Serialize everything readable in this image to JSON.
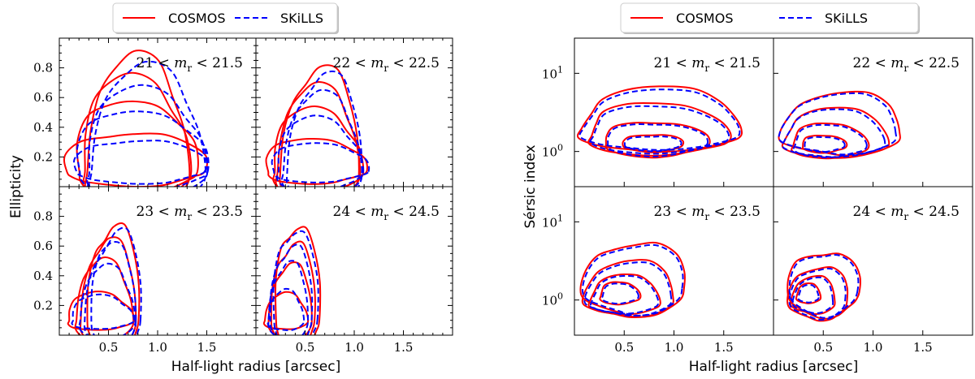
{
  "colors": {
    "cosmos": "#ff0000",
    "skills": "#0000ff"
  },
  "chart_data": [
    {
      "type": "contour",
      "legend": {
        "placement": "top-center",
        "entries": [
          "COSMOS",
          "SKiLLS"
        ]
      },
      "xlabel": "Half-light radius [arcsec]",
      "ylabel": "Ellipticity",
      "xlim": [
        0,
        2.0
      ],
      "ylim": [
        0,
        1.0
      ],
      "xticks": [
        "0.5",
        "1.0",
        "1.5"
      ],
      "yticks": [
        "0.2",
        "0.4",
        "0.6",
        "0.8"
      ],
      "panels": [
        {
          "label_prefix": "21 <",
          "label_var": "m",
          "label_sub": "r",
          "label_suffix": "< 21.5",
          "contours": [
            {
              "series": "COSMOS",
              "levels": [
                [
                  0.75,
                  0.1,
                  0.7,
                  0.27
                ],
                [
                  0.75,
                  0.1,
                  0.6,
                  0.49
                ],
                [
                  0.75,
                  0.1,
                  0.54,
                  0.65
                ],
                [
                  0.78,
                  0.1,
                  0.52,
                  0.77
                ]
              ]
            },
            {
              "series": "SKiLLS",
              "levels": [
                [
                  0.8,
                  0.1,
                  0.65,
                  0.22
                ],
                [
                  0.8,
                  0.1,
                  0.65,
                  0.42
                ],
                [
                  0.85,
                  0.1,
                  0.6,
                  0.57
                ],
                [
                  0.88,
                  0.1,
                  0.58,
                  0.7
                ]
              ]
            }
          ]
        },
        {
          "label_prefix": "22 <",
          "label_var": "m",
          "label_sub": "r",
          "label_suffix": "< 22.5",
          "contours": [
            {
              "series": "COSMOS",
              "levels": [
                [
                  0.58,
                  0.1,
                  0.5,
                  0.23
                ],
                [
                  0.6,
                  0.1,
                  0.45,
                  0.43
                ],
                [
                  0.62,
                  0.1,
                  0.42,
                  0.57
                ],
                [
                  0.65,
                  0.1,
                  0.4,
                  0.68
                ]
              ]
            },
            {
              "series": "SKiLLS",
              "levels": [
                [
                  0.62,
                  0.1,
                  0.48,
                  0.2
                ],
                [
                  0.62,
                  0.1,
                  0.43,
                  0.37
                ],
                [
                  0.66,
                  0.1,
                  0.4,
                  0.52
                ],
                [
                  0.7,
                  0.1,
                  0.38,
                  0.64
                ]
              ]
            }
          ]
        },
        {
          "label_prefix": "23 <",
          "label_var": "m",
          "label_sub": "r",
          "label_suffix": "< 23.5",
          "contours": [
            {
              "series": "COSMOS",
              "levels": [
                [
                  0.4,
                  0.1,
                  0.33,
                  0.19
                ],
                [
                  0.45,
                  0.1,
                  0.29,
                  0.4
                ],
                [
                  0.5,
                  0.1,
                  0.28,
                  0.53
                ],
                [
                  0.55,
                  0.1,
                  0.26,
                  0.64
                ]
              ]
            },
            {
              "series": "SKiLLS",
              "levels": [
                [
                  0.42,
                  0.1,
                  0.31,
                  0.17
                ],
                [
                  0.48,
                  0.1,
                  0.28,
                  0.36
                ],
                [
                  0.52,
                  0.1,
                  0.26,
                  0.5
                ],
                [
                  0.58,
                  0.1,
                  0.25,
                  0.61
                ]
              ]
            }
          ]
        },
        {
          "label_prefix": "24 <",
          "label_var": "m",
          "label_sub": "r",
          "label_suffix": "< 24.5",
          "contours": [
            {
              "series": "COSMOS",
              "levels": [
                [
                  0.3,
                  0.1,
                  0.22,
                  0.18
                ],
                [
                  0.35,
                  0.1,
                  0.22,
                  0.37
                ],
                [
                  0.38,
                  0.1,
                  0.22,
                  0.52
                ],
                [
                  0.42,
                  0.1,
                  0.22,
                  0.65
                ]
              ]
            },
            {
              "series": "SKiLLS",
              "levels": [
                [
                  0.3,
                  0.1,
                  0.18,
                  0.2
                ],
                [
                  0.33,
                  0.1,
                  0.2,
                  0.38
                ],
                [
                  0.36,
                  0.1,
                  0.21,
                  0.5
                ],
                [
                  0.4,
                  0.1,
                  0.22,
                  0.62
                ]
              ]
            }
          ]
        }
      ]
    },
    {
      "type": "contour",
      "legend": {
        "placement": "top-center",
        "entries": [
          "COSMOS",
          "SKiLLS"
        ]
      },
      "xlabel": "Half-light radius [arcsec]",
      "ylabel": "Sérsic index",
      "xlim": [
        0,
        2.0
      ],
      "ylim_log10": [
        -0.45,
        1.45
      ],
      "xticks": [
        "0.5",
        "1.0",
        "1.5"
      ],
      "yticks": [
        {
          "base": "10",
          "exp": "0"
        },
        {
          "base": "10",
          "exp": "1"
        }
      ],
      "panels": [
        {
          "label_prefix": "21 <",
          "label_var": "m",
          "label_sub": "r",
          "label_suffix": "< 21.5",
          "contours": [
            {
              "series": "COSMOS",
              "levels": [
                [
                  0.78,
                  0.08,
                  0.3,
                  0.14
                ],
                [
                  0.8,
                  0.1,
                  0.52,
                  0.28
                ],
                [
                  0.82,
                  0.2,
                  0.7,
                  0.42
                ],
                [
                  0.85,
                  0.3,
                  0.8,
                  0.52
                ]
              ]
            },
            {
              "series": "SKiLLS",
              "levels": [
                [
                  0.78,
                  0.08,
                  0.28,
                  0.12
                ],
                [
                  0.8,
                  0.1,
                  0.5,
                  0.26
                ],
                [
                  0.82,
                  0.2,
                  0.68,
                  0.38
                ],
                [
                  0.85,
                  0.3,
                  0.78,
                  0.48
                ]
              ]
            }
          ]
        },
        {
          "label_prefix": "22 <",
          "label_var": "m",
          "label_sub": "r",
          "label_suffix": "< 22.5",
          "contours": [
            {
              "series": "COSMOS",
              "levels": [
                [
                  0.5,
                  0.07,
                  0.22,
                  0.14
                ],
                [
                  0.55,
                  0.08,
                  0.38,
                  0.28
                ],
                [
                  0.62,
                  0.15,
                  0.52,
                  0.4
                ],
                [
                  0.68,
                  0.25,
                  0.6,
                  0.5
                ]
              ]
            },
            {
              "series": "SKiLLS",
              "levels": [
                [
                  0.5,
                  0.07,
                  0.2,
                  0.12
                ],
                [
                  0.55,
                  0.08,
                  0.36,
                  0.26
                ],
                [
                  0.6,
                  0.15,
                  0.5,
                  0.38
                ],
                [
                  0.66,
                  0.25,
                  0.58,
                  0.48
                ]
              ]
            }
          ]
        },
        {
          "label_prefix": "23 <",
          "label_var": "m",
          "label_sub": "r",
          "label_suffix": "< 23.5",
          "contours": [
            {
              "series": "COSMOS",
              "levels": [
                [
                  0.45,
                  0.05,
                  0.2,
                  0.18
                ],
                [
                  0.5,
                  0.0,
                  0.35,
                  0.32
                ],
                [
                  0.55,
                  0.05,
                  0.45,
                  0.45
                ],
                [
                  0.6,
                  0.15,
                  0.52,
                  0.58
                ]
              ]
            },
            {
              "series": "SKiLLS",
              "levels": [
                [
                  0.45,
                  0.05,
                  0.18,
                  0.16
                ],
                [
                  0.5,
                  0.0,
                  0.33,
                  0.3
                ],
                [
                  0.55,
                  0.05,
                  0.43,
                  0.42
                ],
                [
                  0.6,
                  0.15,
                  0.5,
                  0.55
                ]
              ]
            }
          ]
        },
        {
          "label_prefix": "24 <",
          "label_var": "m",
          "label_sub": "r",
          "label_suffix": "< 24.5",
          "contours": [
            {
              "series": "COSMOS",
              "levels": [
                [
                  0.35,
                  0.05,
                  0.12,
                  0.16
                ],
                [
                  0.4,
                  0.0,
                  0.22,
                  0.3
                ],
                [
                  0.45,
                  0.0,
                  0.3,
                  0.42
                ],
                [
                  0.5,
                  0.1,
                  0.36,
                  0.52
                ]
              ]
            },
            {
              "series": "SKiLLS",
              "levels": [
                [
                  0.35,
                  0.05,
                  0.1,
                  0.14
                ],
                [
                  0.4,
                  0.0,
                  0.2,
                  0.28
                ],
                [
                  0.45,
                  0.0,
                  0.28,
                  0.4
                ],
                [
                  0.5,
                  0.1,
                  0.34,
                  0.5
                ]
              ]
            }
          ]
        }
      ]
    }
  ]
}
